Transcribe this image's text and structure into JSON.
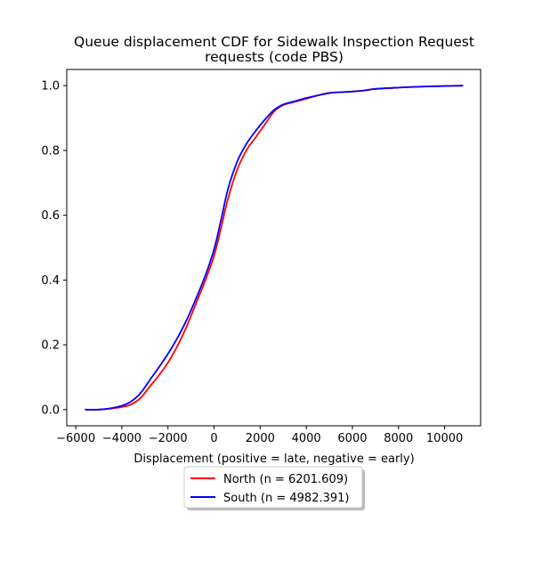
{
  "chart_data": {
    "type": "line",
    "title": "Queue displacement CDF for Sidewalk Inspection Request",
    "subtitle": "requests (code PBS)",
    "xlabel": "Displacement (positive = late, negative = early)",
    "ylabel": "",
    "xlim": [
      -6390,
      11560
    ],
    "ylim": [
      -0.05,
      1.05
    ],
    "xticks": [
      -6000,
      -4000,
      -2000,
      0,
      2000,
      4000,
      6000,
      8000,
      10000
    ],
    "xtick_labels": [
      "−6000",
      "−4000",
      "−2000",
      "0",
      "2000",
      "4000",
      "6000",
      "8000",
      "10000"
    ],
    "yticks": [
      0.0,
      0.2,
      0.4,
      0.6,
      0.8,
      1.0
    ],
    "ytick_labels": [
      "0.0",
      "0.2",
      "0.4",
      "0.6",
      "0.8",
      "1.0"
    ],
    "grid": false,
    "legend_position": "below-center",
    "series": [
      {
        "name": "North (n = 6201.609)",
        "color": "#ff0000",
        "x": [
          -5600,
          -5000,
          -4500,
          -4000,
          -3600,
          -3200,
          -2800,
          -2400,
          -2000,
          -1600,
          -1200,
          -800,
          -400,
          0,
          300,
          600,
          1000,
          1400,
          1800,
          2200,
          2600,
          3000,
          3500,
          4000,
          4500,
          5000,
          5500,
          6000,
          6500,
          7000,
          8000,
          9000,
          10000,
          10800
        ],
        "y": [
          0.0,
          0.0,
          0.003,
          0.008,
          0.016,
          0.035,
          0.07,
          0.105,
          0.145,
          0.195,
          0.255,
          0.325,
          0.395,
          0.475,
          0.56,
          0.65,
          0.74,
          0.8,
          0.84,
          0.88,
          0.92,
          0.94,
          0.95,
          0.96,
          0.97,
          0.978,
          0.98,
          0.982,
          0.985,
          0.99,
          0.994,
          0.997,
          0.999,
          1.0
        ]
      },
      {
        "name": "South (n = 4982.391)",
        "color": "#0000ff",
        "x": [
          -5600,
          -5000,
          -4500,
          -4000,
          -3600,
          -3200,
          -2800,
          -2400,
          -2000,
          -1600,
          -1200,
          -800,
          -400,
          0,
          300,
          600,
          1000,
          1400,
          1800,
          2200,
          2600,
          3000,
          3500,
          4000,
          4500,
          5000,
          5500,
          6000,
          6500,
          7000,
          8000,
          9000,
          10000,
          10800
        ],
        "y": [
          0.0,
          0.0,
          0.004,
          0.012,
          0.025,
          0.05,
          0.09,
          0.13,
          0.172,
          0.22,
          0.275,
          0.34,
          0.41,
          0.495,
          0.585,
          0.68,
          0.765,
          0.82,
          0.86,
          0.895,
          0.925,
          0.942,
          0.952,
          0.962,
          0.97,
          0.977,
          0.98,
          0.982,
          0.985,
          0.99,
          0.994,
          0.997,
          0.999,
          1.0
        ]
      }
    ]
  }
}
